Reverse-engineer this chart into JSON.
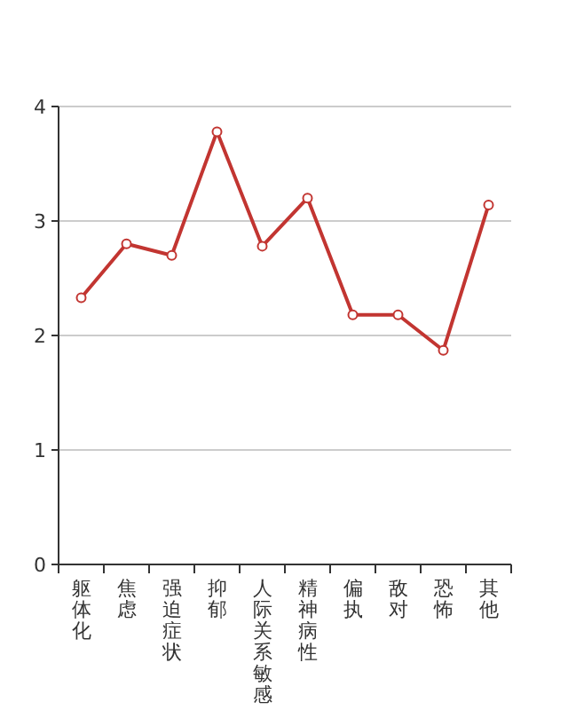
{
  "chart_data": {
    "type": "line",
    "categories": [
      "躯体化",
      "焦虑",
      "强迫症状",
      "抑郁",
      "人际关系敏感",
      "精神病性",
      "偏执",
      "敌对",
      "恐怖",
      "其他"
    ],
    "series": [
      {
        "color": "#c23531",
        "values": [
          2.33,
          2.8,
          2.7,
          3.78,
          2.78,
          3.2,
          2.18,
          2.18,
          1.87,
          3.14
        ]
      }
    ],
    "ylim": [
      0,
      4
    ],
    "yticks": [
      0,
      1,
      2,
      3,
      4
    ],
    "grid": "y",
    "marker": "circle",
    "line_style": "solid"
  }
}
